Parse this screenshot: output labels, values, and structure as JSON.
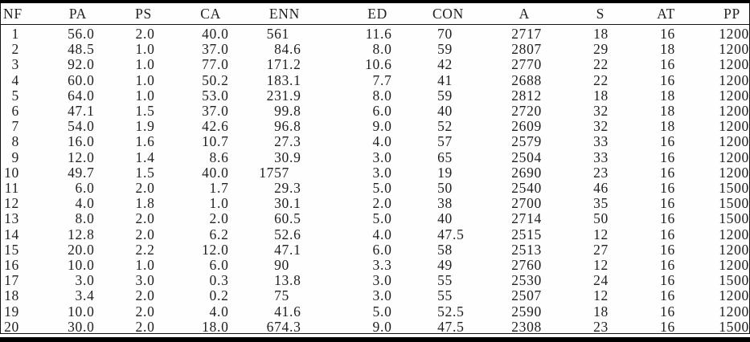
{
  "colors": {
    "background": "#fefefe",
    "text": "#1f1f1f",
    "rule": "#000000"
  },
  "table": {
    "columns": [
      "NF",
      "PA",
      "PS",
      "CA",
      "ENN",
      "ED",
      "CON",
      "A",
      "S",
      "AT",
      "PP"
    ],
    "rows": [
      [
        "1",
        "56.0",
        "2.0",
        "40.0",
        "561",
        "11.6",
        "70",
        "2717",
        "18",
        "16",
        "1200"
      ],
      [
        "2",
        "48.5",
        "1.0",
        "37.0",
        "84.6",
        "8.0",
        "59",
        "2807",
        "29",
        "18",
        "1200"
      ],
      [
        "3",
        "92.0",
        "1.0",
        "77.0",
        "171.2",
        "10.6",
        "42",
        "2770",
        "22",
        "16",
        "1200"
      ],
      [
        "4",
        "60.0",
        "1.0",
        "50.2",
        "183.1",
        "7.7",
        "41",
        "2688",
        "22",
        "16",
        "1200"
      ],
      [
        "5",
        "64.0",
        "1.0",
        "53.0",
        "231.9",
        "8.0",
        "59",
        "2812",
        "18",
        "18",
        "1200"
      ],
      [
        "6",
        "47.1",
        "1.5",
        "37.0",
        "99.8",
        "6.0",
        "40",
        "2720",
        "32",
        "18",
        "1200"
      ],
      [
        "7",
        "54.0",
        "1.9",
        "42.6",
        "96.8",
        "9.0",
        "52",
        "2609",
        "32",
        "18",
        "1200"
      ],
      [
        "8",
        "16.0",
        "1.6",
        "10.7",
        "27.3",
        "4.0",
        "57",
        "2579",
        "33",
        "16",
        "1200"
      ],
      [
        "9",
        "12.0",
        "1.4",
        "8.6",
        "30.9",
        "3.0",
        "65",
        "2504",
        "33",
        "16",
        "1200"
      ],
      [
        "10",
        "49.7",
        "1.5",
        "40.0",
        "1757",
        "3.0",
        "19",
        "2690",
        "23",
        "16",
        "1200"
      ],
      [
        "11",
        "6.0",
        "2.0",
        "1.7",
        "29.3",
        "5.0",
        "50",
        "2540",
        "46",
        "16",
        "1500"
      ],
      [
        "12",
        "4.0",
        "1.8",
        "1.0",
        "30.1",
        "2.0",
        "38",
        "2700",
        "35",
        "16",
        "1500"
      ],
      [
        "13",
        "8.0",
        "2.0",
        "2.0",
        "60.5",
        "5.0",
        "40",
        "2714",
        "50",
        "16",
        "1500"
      ],
      [
        "14",
        "12.8",
        "2.0",
        "6.2",
        "52.6",
        "4.0",
        "47.5",
        "2515",
        "12",
        "16",
        "1200"
      ],
      [
        "15",
        "20.0",
        "2.2",
        "12.0",
        "47.1",
        "6.0",
        "58",
        "2513",
        "27",
        "16",
        "1200"
      ],
      [
        "16",
        "10.0",
        "1.0",
        "6.0",
        "90",
        "3.3",
        "49",
        "2760",
        "12",
        "16",
        "1200"
      ],
      [
        "17",
        "3.0",
        "3.0",
        "0.3",
        "13.8",
        "3.0",
        "55",
        "2530",
        "24",
        "16",
        "1500"
      ],
      [
        "18",
        "3.4",
        "2.0",
        "0.2",
        "75",
        "3.0",
        "55",
        "2507",
        "12",
        "16",
        "1200"
      ],
      [
        "19",
        "10.0",
        "2.0",
        "4.0",
        "41.6",
        "5.0",
        "52.5",
        "2590",
        "18",
        "16",
        "1200"
      ],
      [
        "20",
        "30.0",
        "2.0",
        "18.0",
        "674.3",
        "9.0",
        "47.5",
        "2308",
        "23",
        "16",
        "1500"
      ]
    ]
  }
}
